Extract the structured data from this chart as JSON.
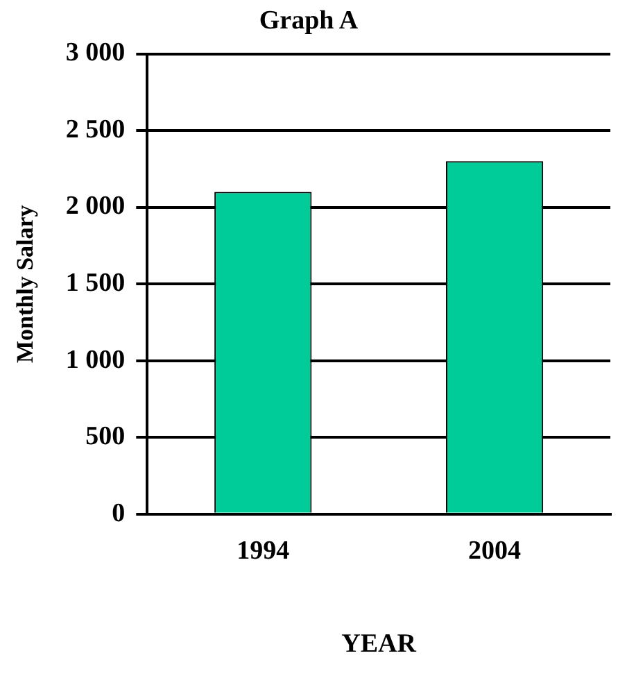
{
  "chart_data": {
    "type": "bar",
    "title": "Graph A",
    "xlabel": "YEAR",
    "ylabel": "Monthly Salary",
    "categories": [
      "1994",
      "2004"
    ],
    "values": [
      2100,
      2300
    ],
    "color": "#00cc99",
    "ylim": [
      0,
      3000
    ],
    "yticks": [
      {
        "value": 0,
        "label": "0"
      },
      {
        "value": 500,
        "label": "500"
      },
      {
        "value": 1000,
        "label": "1 000"
      },
      {
        "value": 1500,
        "label": "1 500"
      },
      {
        "value": 2000,
        "label": "2 000"
      },
      {
        "value": 2500,
        "label": "2 500"
      },
      {
        "value": 3000,
        "label": "3 000"
      }
    ],
    "grid": "y",
    "legend": false
  }
}
